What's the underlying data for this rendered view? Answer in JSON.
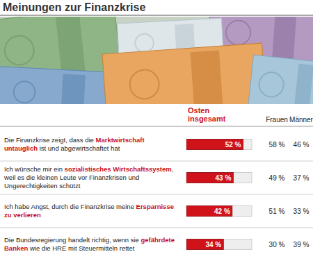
{
  "chart_data": {
    "type": "bar",
    "orientation": "horizontal",
    "title": "Meinungen zur Finanzkrise",
    "categories": [
      "Die Finanzkrise zeigt, dass die Marktwirtschaft untauglich ist und abgewirtschaftet hat",
      "Ich wünsche mir ein sozialistisches Wirtschafts­system, weil es die kleinen Leute vor Finanzkrisen und Ungerechtigkeiten schützt",
      "Ich habe Angst, durch die Finanzkrise meine Ersparnisse zu verlieren",
      "Die Bundesregierung handelt richtig, wenn sie gefährdete Banken wie die HRE mit Steuermitteln rettet"
    ],
    "emphasis": [
      "Marktwirtschaft untauglich",
      "sozialistisches Wirtschafts­system",
      "Ersparnisse zu verlieren",
      "gefährdete Banken"
    ],
    "series": [
      {
        "name": "Osten insgesamt",
        "color": "#d0121b",
        "values": [
          52,
          43,
          42,
          34
        ],
        "value_labels": [
          "52 %",
          "43 %",
          "42 %",
          "34 %"
        ]
      },
      {
        "name": "Frauen",
        "values": [
          58,
          49,
          51,
          30
        ],
        "value_labels": [
          "58 %",
          "49 %",
          "51 %",
          "30 %"
        ]
      },
      {
        "name": "Männer",
        "values": [
          46,
          37,
          33,
          39
        ],
        "value_labels": [
          "46 %",
          "37 %",
          "33 %",
          "39 %"
        ]
      }
    ],
    "xlim": [
      0,
      60
    ],
    "data_labels": true,
    "tick_labels": false
  }
}
